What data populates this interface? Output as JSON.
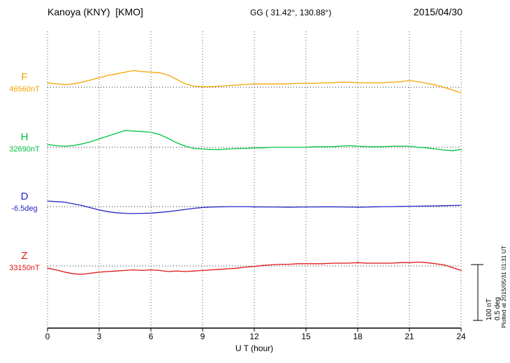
{
  "header": {
    "station": "Kanoya (KNY)  [KMO]",
    "coordinates": "GG ( 31.42°, 130.88°)",
    "date": "2015/04/30"
  },
  "xaxis": {
    "label": "U T (hour)",
    "ticks": [
      "0",
      "3",
      "6",
      "9",
      "12",
      "15",
      "18",
      "21",
      "24"
    ]
  },
  "scale_bar": {
    "labels": [
      "100 nT",
      "0.5 deg"
    ]
  },
  "plot_note": "Plotted at 2015/05/31 01:31 UT",
  "chart_data": {
    "type": "line",
    "title": "Kanoya (KNY) [KMO] magnetogram 2015/04/30",
    "xlabel": "U T (hour)",
    "x_range": [
      0,
      24
    ],
    "grid": "dotted vertical gridlines every 3 hours; dotted horizontal baseline for each trace",
    "legend_position": "left margin (per-trace letter and baseline value)",
    "scale": {
      "nT_per_division": 100,
      "deg_per_division": 0.5
    },
    "x_hours": [
      0,
      0.5,
      1,
      1.5,
      2,
      2.5,
      3,
      3.5,
      4,
      4.5,
      5,
      5.5,
      6,
      6.5,
      7,
      7.5,
      8,
      8.5,
      9,
      9.5,
      10,
      10.5,
      11,
      11.5,
      12,
      12.5,
      13,
      13.5,
      14,
      14.5,
      15,
      15.5,
      16,
      16.5,
      17,
      17.5,
      18,
      18.5,
      19,
      19.5,
      20,
      20.5,
      21,
      21.5,
      22,
      22.5,
      23,
      23.5,
      24
    ],
    "series": [
      {
        "name": "F",
        "color": "#f5a400",
        "unit": "nT",
        "baseline_label": "46560nT",
        "baseline_value": 46560,
        "deviation_values": [
          8,
          6,
          5,
          6,
          9,
          13,
          17,
          21,
          24,
          27,
          30,
          28,
          27,
          26,
          22,
          14,
          6,
          2,
          1,
          1,
          2,
          3,
          4,
          5,
          6,
          6,
          6,
          6,
          6,
          7,
          7,
          7,
          8,
          8,
          9,
          9,
          8,
          8,
          8,
          8,
          9,
          10,
          12,
          10,
          7,
          4,
          0,
          -5,
          -10
        ]
      },
      {
        "name": "H",
        "color": "#00c244",
        "unit": "nT",
        "baseline_label": "32690nT",
        "baseline_value": 32690,
        "deviation_values": [
          5,
          3,
          2,
          3,
          6,
          10,
          15,
          20,
          25,
          30,
          29,
          28,
          27,
          23,
          16,
          8,
          2,
          -2,
          -3,
          -4,
          -4,
          -3,
          -2,
          -2,
          -1,
          -1,
          0,
          0,
          0,
          0,
          0,
          1,
          1,
          1,
          2,
          3,
          2,
          1,
          1,
          1,
          2,
          2,
          2,
          0,
          -1,
          -3,
          -5,
          -6,
          -4
        ]
      },
      {
        "name": "D",
        "color": "#2525c8",
        "unit": "deg",
        "baseline_label": "-6.5deg",
        "baseline_value": -6.5,
        "deviation_values": [
          0.05,
          0.045,
          0.04,
          0.025,
          0.01,
          -0.01,
          -0.03,
          -0.045,
          -0.055,
          -0.06,
          -0.062,
          -0.06,
          -0.058,
          -0.052,
          -0.045,
          -0.035,
          -0.025,
          -0.015,
          -0.008,
          -0.004,
          -0.002,
          0,
          0,
          0,
          -0.002,
          -0.003,
          -0.003,
          -0.004,
          -0.005,
          -0.004,
          -0.003,
          -0.003,
          -0.002,
          -0.002,
          -0.003,
          -0.004,
          -0.005,
          -0.004,
          -0.002,
          0,
          0,
          0.002,
          0.003,
          0.004,
          0.005,
          0.006,
          0.008,
          0.01,
          0.012
        ]
      },
      {
        "name": "Z",
        "color": "#e01515",
        "unit": "nT",
        "baseline_label": "33150nT",
        "baseline_value": 33150,
        "deviation_values": [
          -4,
          -7,
          -11,
          -14,
          -15,
          -13,
          -11,
          -10,
          -9,
          -8,
          -7,
          -8,
          -7,
          -8,
          -10,
          -9,
          -10,
          -9,
          -8,
          -7,
          -6,
          -5,
          -4,
          -2,
          -1,
          1,
          2,
          3,
          3,
          4,
          4,
          4,
          4,
          5,
          5,
          5,
          6,
          5,
          5,
          5,
          5,
          6,
          6,
          7,
          6,
          4,
          2,
          -3,
          -8
        ]
      }
    ]
  }
}
